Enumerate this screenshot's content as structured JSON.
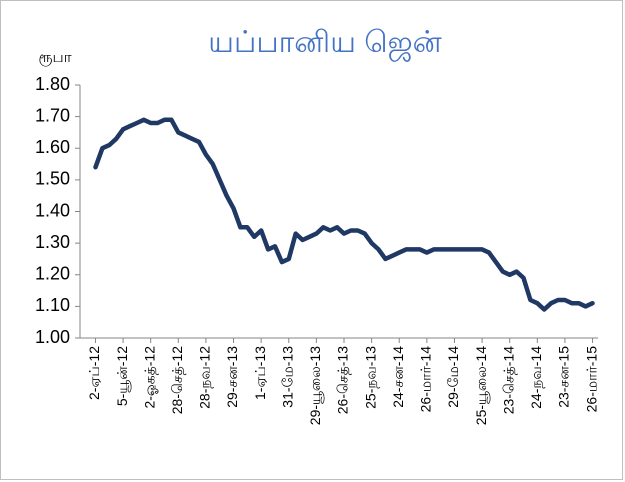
{
  "chart_data": {
    "type": "line",
    "title": "யப்பானிய ஜென்",
    "y_label": "ரூபா",
    "categories": [
      "2-ஏப்-12",
      null,
      null,
      null,
      "5-யூன்-12",
      null,
      null,
      null,
      "2-ஓகத்-12",
      null,
      null,
      null,
      "28-செத்-12",
      null,
      null,
      null,
      "28-நவ-12",
      null,
      null,
      null,
      "29-சன-13",
      null,
      null,
      null,
      "1-ஏப்-13",
      null,
      null,
      null,
      "31-மே-13",
      null,
      null,
      null,
      "29-யூலை-13",
      null,
      null,
      null,
      "26-செத்-13",
      null,
      null,
      null,
      "25-நவ-13",
      null,
      null,
      null,
      "24-சன-14",
      null,
      null,
      null,
      "26-மார்-14",
      null,
      null,
      null,
      "29-மே-14",
      null,
      null,
      null,
      "25-யூலை-14",
      null,
      null,
      null,
      "23-செத்-14",
      null,
      null,
      null,
      "24-நவ-14",
      null,
      null,
      null,
      "23-சன-15",
      null,
      null,
      null,
      "26-மார்-15"
    ],
    "values": [
      1.54,
      1.6,
      1.61,
      1.63,
      1.66,
      1.67,
      1.68,
      1.69,
      1.68,
      1.68,
      1.69,
      1.69,
      1.65,
      1.64,
      1.63,
      1.62,
      1.58,
      1.55,
      1.5,
      1.45,
      1.41,
      1.35,
      1.35,
      1.32,
      1.34,
      1.28,
      1.29,
      1.24,
      1.25,
      1.33,
      1.31,
      1.32,
      1.33,
      1.35,
      1.34,
      1.35,
      1.33,
      1.34,
      1.34,
      1.33,
      1.3,
      1.28,
      1.25,
      1.26,
      1.27,
      1.28,
      1.28,
      1.28,
      1.27,
      1.28,
      1.28,
      1.28,
      1.28,
      1.28,
      1.28,
      1.28,
      1.28,
      1.27,
      1.24,
      1.21,
      1.2,
      1.21,
      1.19,
      1.12,
      1.11,
      1.09,
      1.11,
      1.12,
      1.12,
      1.11,
      1.11,
      1.1,
      1.11
    ],
    "color": "#1f3864",
    "title_color": "#4472c4",
    "ylim": [
      1.0,
      1.8
    ],
    "yticks": [
      {
        "value": 1.0,
        "label": "1.00"
      },
      {
        "value": 1.1,
        "label": "1.10"
      },
      {
        "value": 1.2,
        "label": "1.20"
      },
      {
        "value": 1.3,
        "label": "1.30"
      },
      {
        "value": 1.4,
        "label": "1.40"
      },
      {
        "value": 1.5,
        "label": "1.50"
      },
      {
        "value": 1.6,
        "label": "1.60"
      },
      {
        "value": 1.7,
        "label": "1.70"
      },
      {
        "value": 1.8,
        "label": "1.80"
      }
    ],
    "grid": false
  }
}
